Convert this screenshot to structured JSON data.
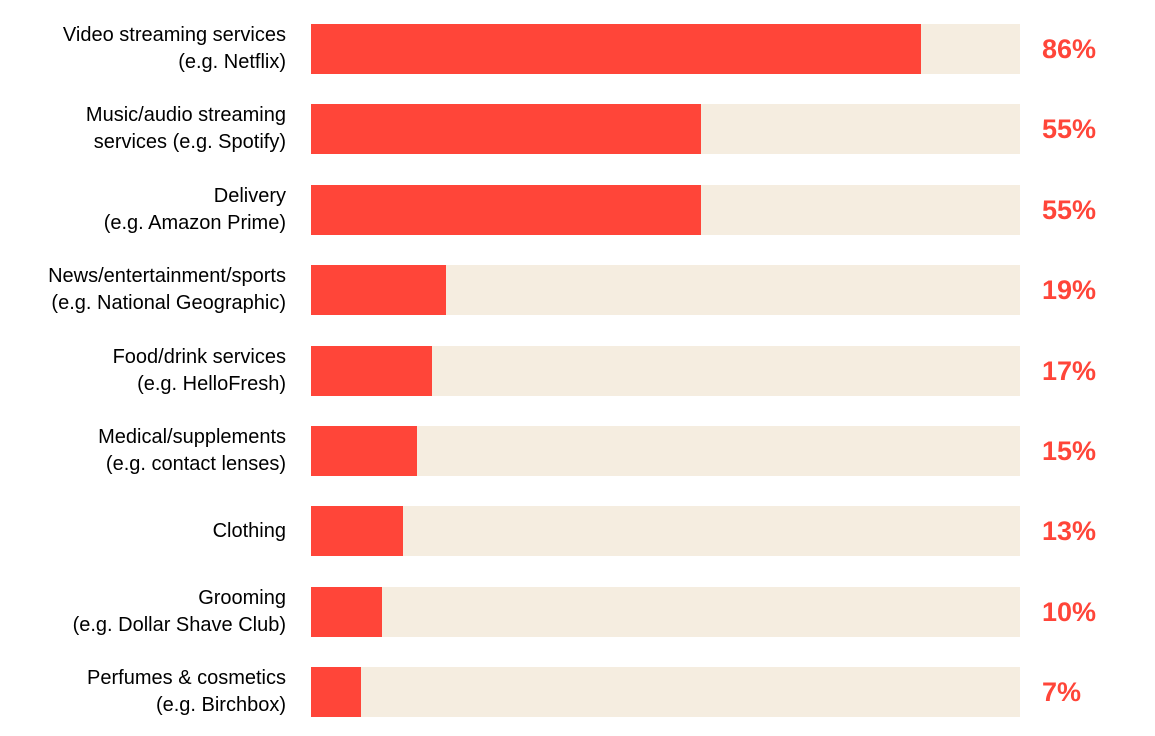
{
  "colors": {
    "bar": "#ff4539",
    "track": "#f5ede0",
    "value_text": "#ff4539",
    "label_text": "#000000"
  },
  "chart_data": {
    "type": "bar",
    "orientation": "horizontal",
    "xlim": [
      0,
      100
    ],
    "value_suffix": "%",
    "categories": [
      {
        "label_lines": [
          "Video streaming services",
          "(e.g. Netflix)"
        ],
        "value": 86,
        "value_label": "86%"
      },
      {
        "label_lines": [
          "Music/audio streaming",
          "services (e.g. Spotify)"
        ],
        "value": 55,
        "value_label": "55%"
      },
      {
        "label_lines": [
          "Delivery",
          "(e.g. Amazon Prime)"
        ],
        "value": 55,
        "value_label": "55%"
      },
      {
        "label_lines": [
          "News/entertainment/sports",
          "(e.g. National Geographic)"
        ],
        "value": 19,
        "value_label": "19%"
      },
      {
        "label_lines": [
          "Food/drink services",
          "(e.g. HelloFresh)"
        ],
        "value": 17,
        "value_label": "17%"
      },
      {
        "label_lines": [
          "Medical/supplements",
          "(e.g. contact lenses)"
        ],
        "value": 15,
        "value_label": "15%"
      },
      {
        "label_lines": [
          "Clothing"
        ],
        "value": 13,
        "value_label": "13%"
      },
      {
        "label_lines": [
          "Grooming",
          "(e.g. Dollar Shave Club)"
        ],
        "value": 10,
        "value_label": "10%"
      },
      {
        "label_lines": [
          "Perfumes & cosmetics",
          "(e.g. Birchbox)"
        ],
        "value": 7,
        "value_label": "7%"
      }
    ]
  }
}
